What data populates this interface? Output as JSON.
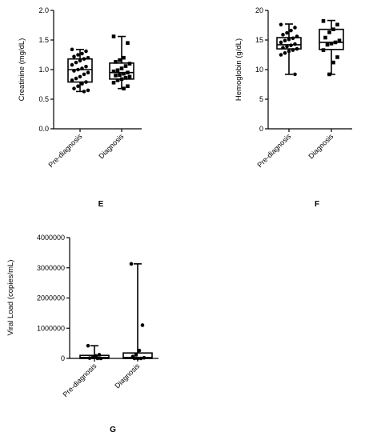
{
  "chart_data": [
    {
      "panel": "",
      "type": "box",
      "title": "",
      "xlabel": "",
      "ylabel": "Creatinine (mg/dL)",
      "ylim": [
        0.0,
        2.0
      ],
      "yticks": [
        "0.0",
        "0.5",
        "1.0",
        "1.5",
        "2.0"
      ],
      "yticks_values": [
        0.0,
        0.5,
        1.0,
        1.5,
        2.0
      ],
      "categories": [
        "Pre-diagnosis",
        "Diagnosis"
      ],
      "boxes": [
        {
          "min": 0.63,
          "q1": 0.79,
          "median": 1.0,
          "q3": 1.18,
          "max": 1.34
        },
        {
          "min": 0.68,
          "q1": 0.84,
          "median": 0.95,
          "q3": 1.11,
          "max": 1.56
        }
      ],
      "points": [
        [
          1.34,
          1.31,
          1.27,
          1.25,
          1.22,
          1.2,
          1.18,
          1.15,
          1.12,
          1.08,
          1.05,
          1.02,
          1.0,
          0.98,
          0.95,
          0.92,
          0.88,
          0.85,
          0.82,
          0.79,
          0.76,
          0.72,
          0.68,
          0.65,
          0.63
        ],
        [
          1.56,
          1.45,
          1.2,
          1.16,
          1.13,
          1.1,
          1.06,
          1.02,
          0.99,
          0.97,
          0.95,
          0.93,
          0.91,
          0.9,
          0.88,
          0.86,
          0.84,
          0.82,
          0.78,
          0.72,
          0.68
        ]
      ]
    },
    {
      "panel": "",
      "type": "box",
      "title": "",
      "xlabel": "",
      "ylabel": "Hemoglobin (g/dL)",
      "ylim": [
        0,
        20
      ],
      "yticks": [
        "0",
        "5",
        "10",
        "15",
        "20"
      ],
      "yticks_values": [
        0,
        5,
        10,
        15,
        20
      ],
      "categories": [
        "Pre-diagnosis",
        "Diagnosis"
      ],
      "boxes": [
        {
          "min": 9.2,
          "q1": 13.5,
          "median": 14.2,
          "q3": 15.4,
          "max": 17.7
        },
        {
          "min": 9.2,
          "q1": 13.4,
          "median": 14.6,
          "q3": 16.8,
          "max": 18.3
        }
      ],
      "points": [
        [
          17.6,
          17.1,
          16.6,
          16.2,
          15.9,
          15.6,
          15.3,
          15.1,
          14.9,
          14.6,
          14.3,
          14.1,
          13.9,
          13.7,
          13.5,
          13.3,
          13.1,
          12.8,
          12.5,
          9.2
        ],
        [
          18.2,
          17.6,
          16.8,
          16.3,
          15.4,
          14.9,
          14.6,
          14.4,
          14.2,
          13.3,
          12.1,
          11.2,
          9.2
        ]
      ]
    },
    {
      "panel": "G",
      "type": "box",
      "title": "",
      "xlabel": "",
      "ylabel": "Viral Load (copies/mL)",
      "ylim": [
        0,
        4000000
      ],
      "yticks": [
        "0",
        "1000000",
        "2000000",
        "3000000",
        "4000000"
      ],
      "yticks_values": [
        0,
        1000000,
        2000000,
        3000000,
        4000000
      ],
      "categories": [
        "Pre-diagnosis",
        "Diagnosis"
      ],
      "boxes": [
        {
          "min": 0,
          "q1": 0,
          "median": 30000,
          "q3": 100000,
          "max": 420000
        },
        {
          "min": 0,
          "q1": 0,
          "median": 30000,
          "q3": 180000,
          "max": 3130000
        }
      ],
      "points": [
        [
          420000,
          120000,
          80000,
          40000,
          10000,
          0,
          0
        ],
        [
          3130000,
          1100000,
          260000,
          120000,
          60000,
          20000,
          0,
          0,
          0
        ]
      ]
    }
  ],
  "panel_labels": {
    "e": "E",
    "f": "F",
    "g": "G"
  }
}
